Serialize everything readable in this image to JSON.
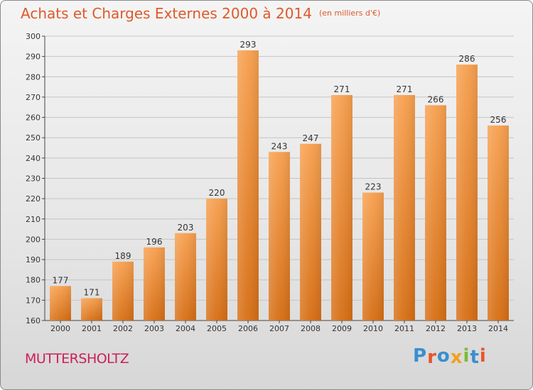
{
  "header": {
    "title": "Achats et Charges Externes 2000 à 2014",
    "subtitle": "(en milliers d'€)"
  },
  "footer": {
    "commune": "MUTTERSHOLTZ",
    "logo": {
      "letters": [
        "P",
        "r",
        "o",
        "x",
        "i",
        "t",
        "i"
      ],
      "colors": [
        "#3a8fd0",
        "#e8542a",
        "#3a8fd0",
        "#f0a11e",
        "#7cb93a",
        "#3a8fd0",
        "#e8542a"
      ]
    }
  },
  "chart_data": {
    "type": "bar",
    "title": "Achats et Charges Externes 2000 à 2014",
    "subtitle": "(en milliers d'€)",
    "categories": [
      "2000",
      "2001",
      "2002",
      "2003",
      "2004",
      "2005",
      "2006",
      "2007",
      "2008",
      "2009",
      "2010",
      "2011",
      "2012",
      "2013",
      "2014"
    ],
    "values": [
      177,
      171,
      189,
      196,
      203,
      220,
      293,
      243,
      247,
      271,
      223,
      271,
      266,
      286,
      256
    ],
    "ylim": [
      160,
      300
    ],
    "yticks": [
      160,
      170,
      180,
      190,
      200,
      210,
      220,
      230,
      240,
      250,
      260,
      270,
      280,
      290,
      300
    ],
    "grid": true,
    "legend": "none",
    "bar_color_top": "#f7a04f",
    "bar_color_bottom": "#d66e14"
  }
}
